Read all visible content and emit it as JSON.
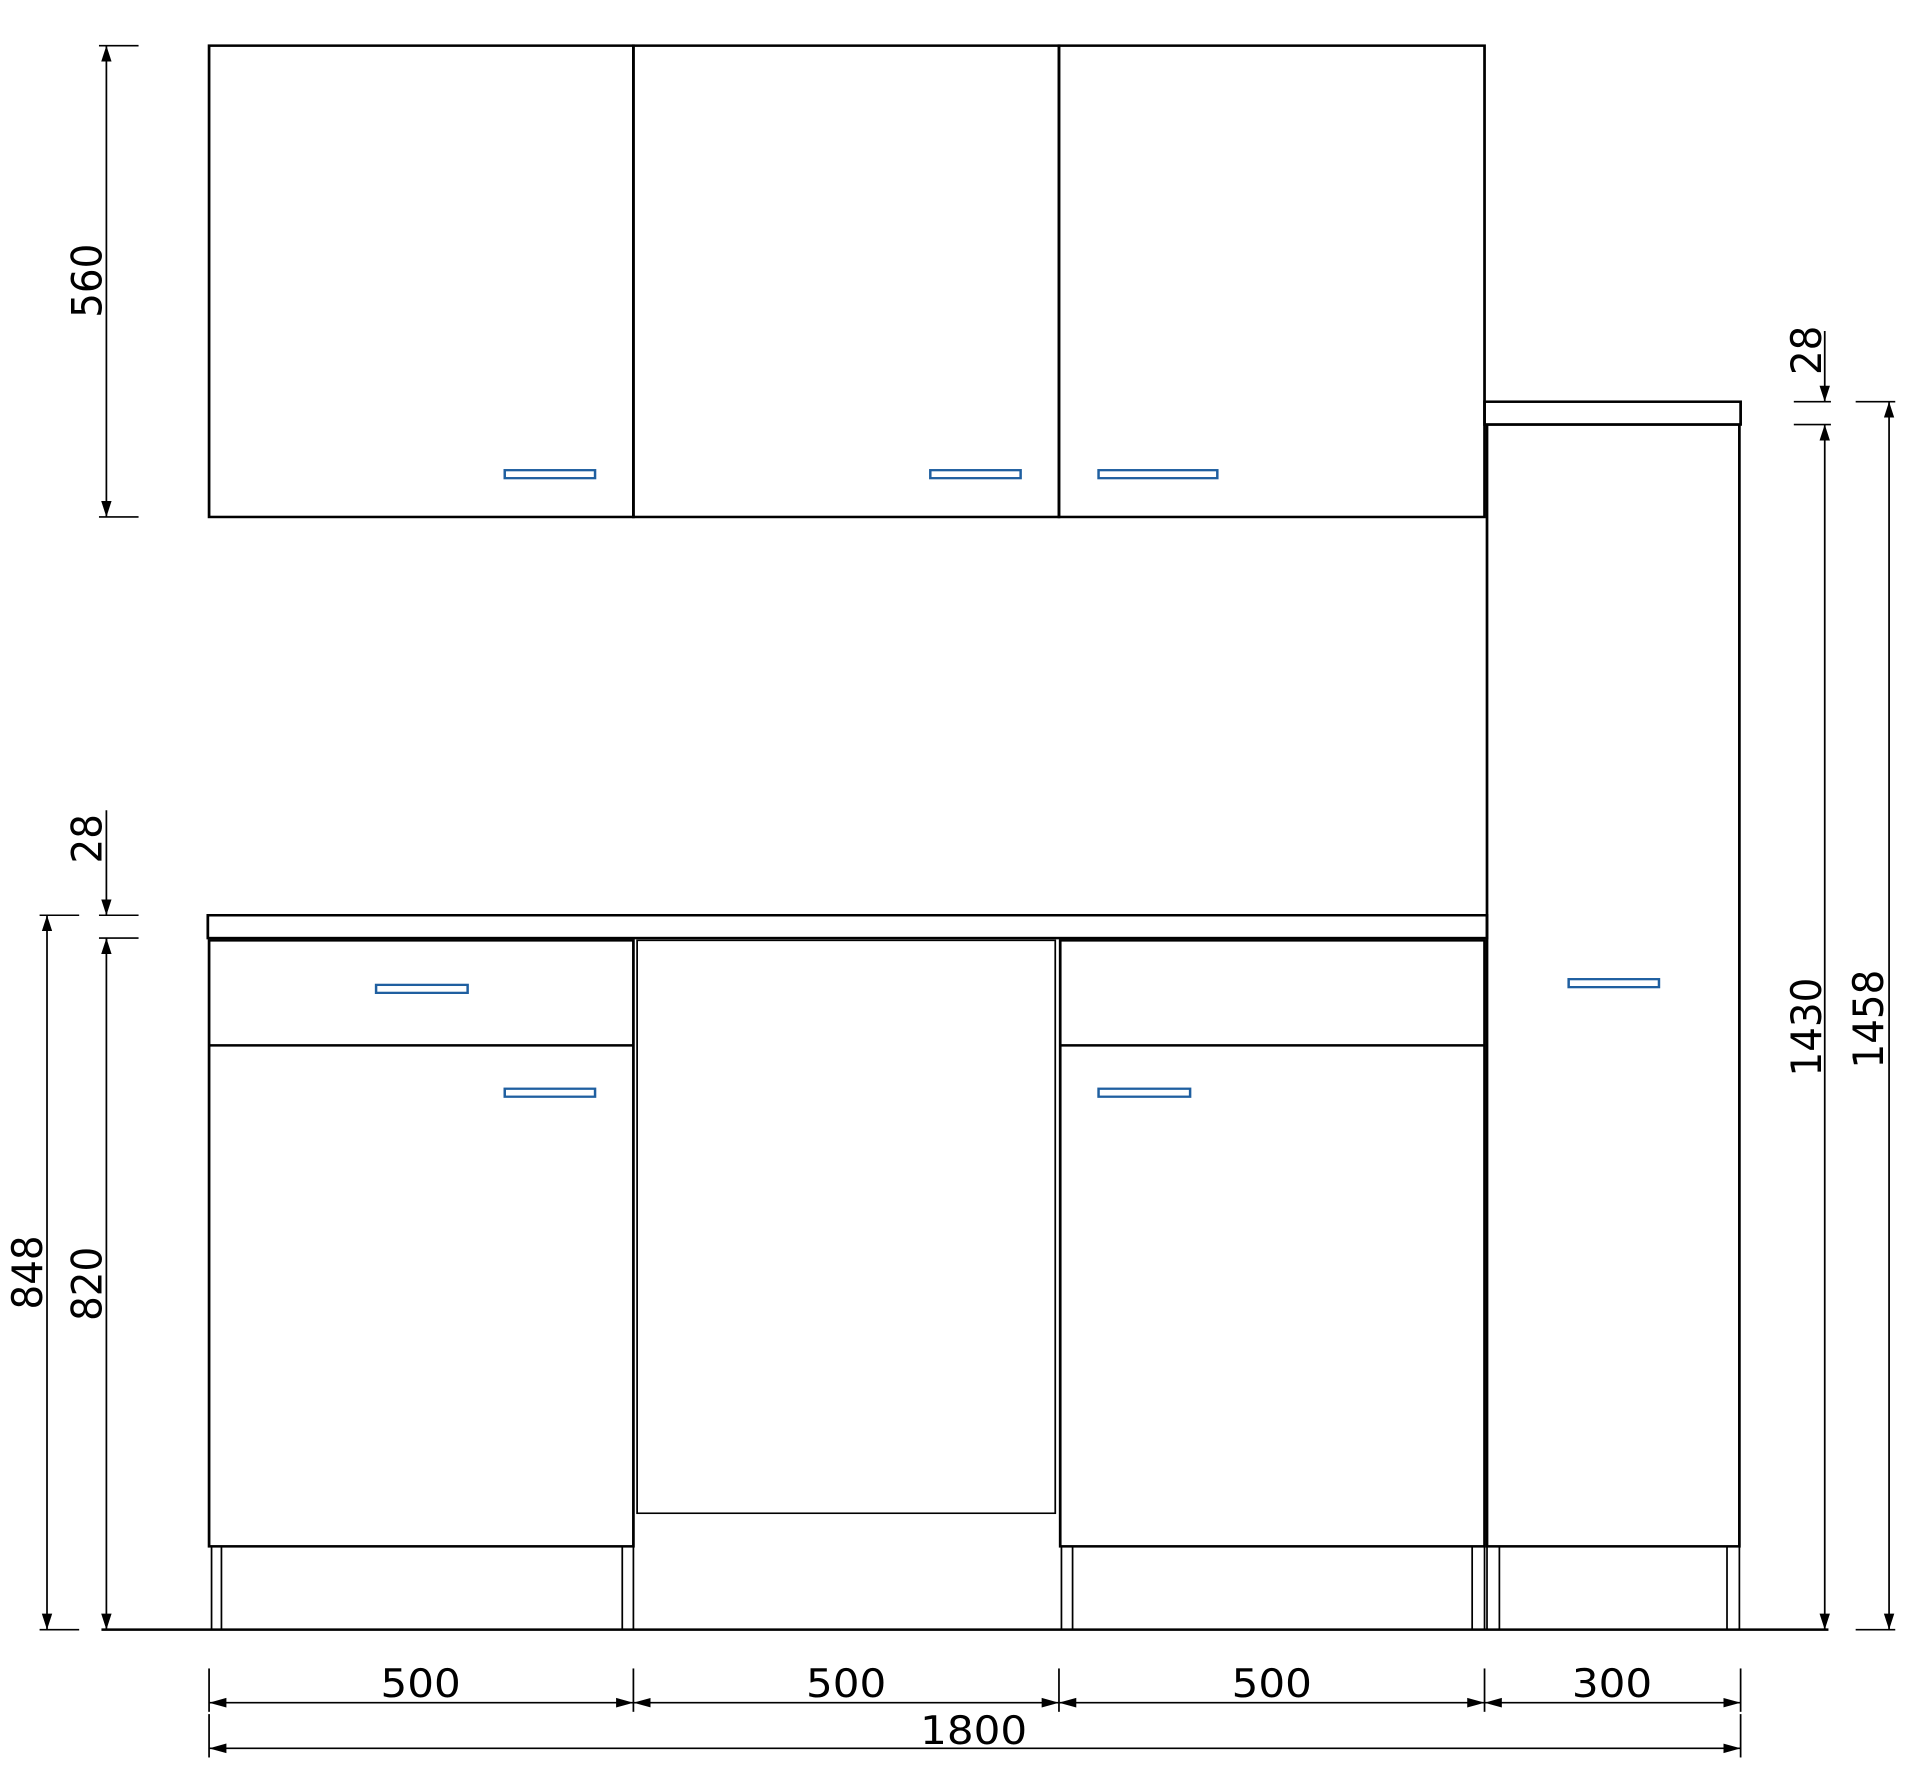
{
  "colors": {
    "line": "#000000",
    "handle": "#1f5fa0",
    "background": "#ffffff"
  },
  "dimensions": {
    "wall_height": "560",
    "worktop_thickness_left": "28",
    "base_height": "820",
    "base_total_height": "848",
    "tall_top_thickness": "28",
    "tall_height": "1430",
    "tall_total_height": "1458",
    "widths": [
      "500",
      "500",
      "500",
      "300"
    ],
    "total_width": "1800"
  }
}
